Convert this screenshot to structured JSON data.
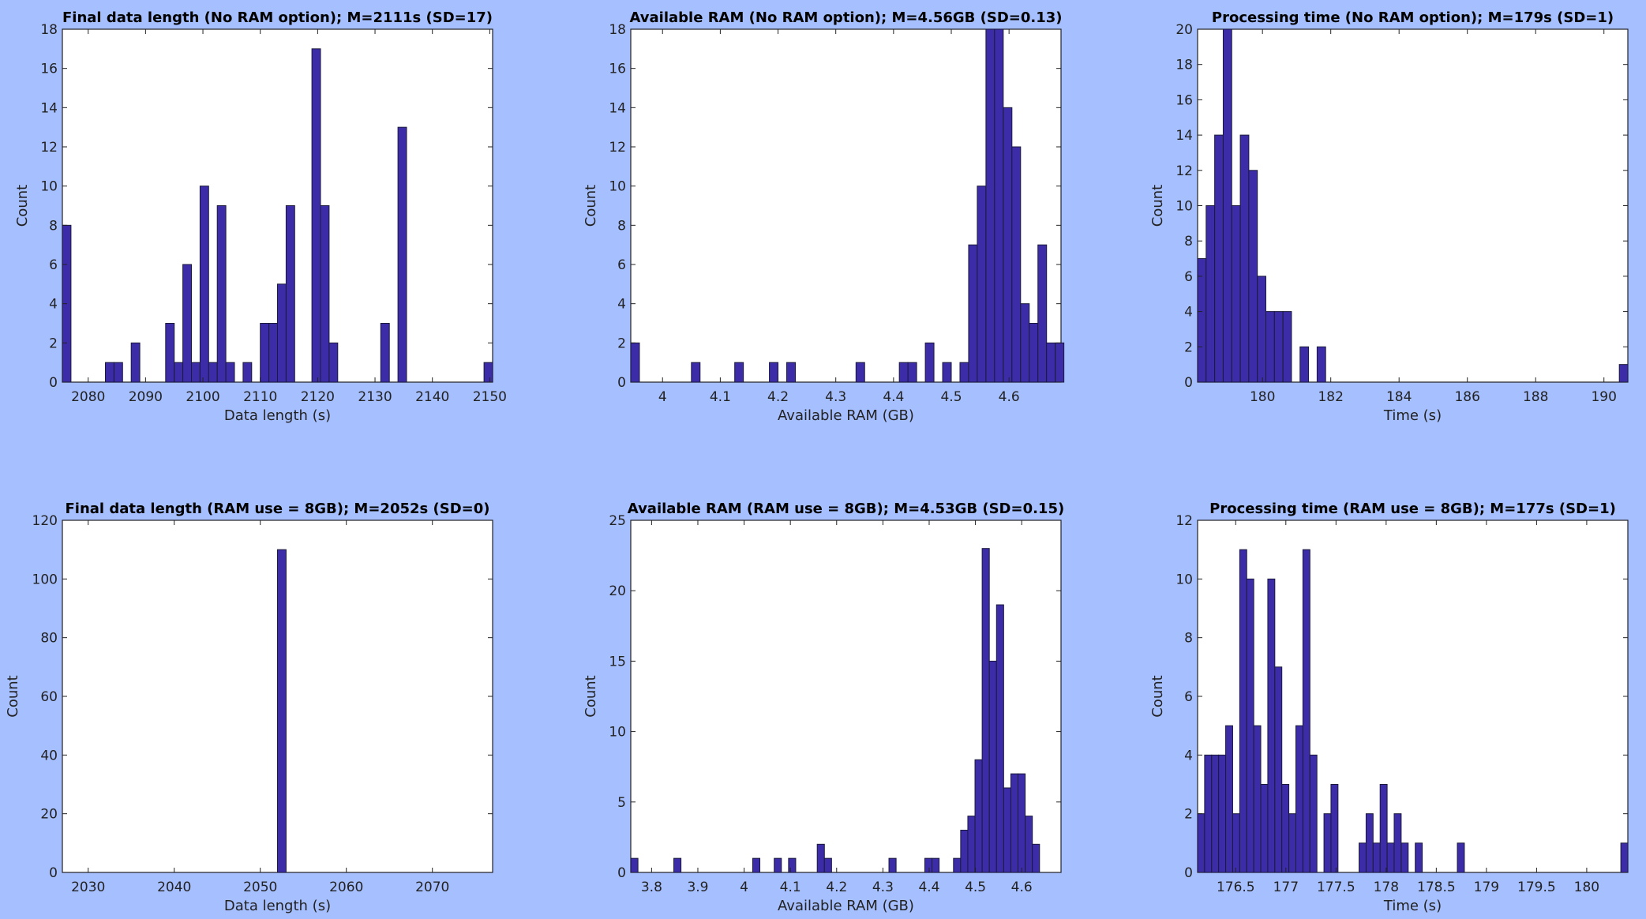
{
  "colors": {
    "background": "#a6bfff",
    "bar": "#3d2ca8",
    "plot_bg": "#ffffff"
  },
  "chart_data": [
    {
      "type": "bar",
      "title": "Final data length (No RAM option); M=2111s (SD=17)",
      "xlabel": "Data length (s)",
      "ylabel": "Count",
      "xlim": [
        2075.5,
        2150.5
      ],
      "ylim": [
        0,
        18
      ],
      "xticks": [
        2080,
        2090,
        2100,
        2110,
        2120,
        2130,
        2140,
        2150
      ],
      "yticks": [
        0,
        2,
        4,
        6,
        8,
        10,
        12,
        14,
        16,
        18
      ],
      "bin_width": 1.5,
      "bins": [
        {
          "x": 2076.25,
          "count": 8
        },
        {
          "x": 2083.75,
          "count": 1
        },
        {
          "x": 2085.25,
          "count": 1
        },
        {
          "x": 2088.25,
          "count": 2
        },
        {
          "x": 2094.25,
          "count": 3
        },
        {
          "x": 2095.75,
          "count": 1
        },
        {
          "x": 2097.25,
          "count": 6
        },
        {
          "x": 2098.75,
          "count": 1
        },
        {
          "x": 2100.25,
          "count": 10
        },
        {
          "x": 2101.75,
          "count": 1
        },
        {
          "x": 2103.25,
          "count": 9
        },
        {
          "x": 2104.75,
          "count": 1
        },
        {
          "x": 2107.75,
          "count": 1
        },
        {
          "x": 2110.75,
          "count": 3
        },
        {
          "x": 2112.25,
          "count": 3
        },
        {
          "x": 2113.75,
          "count": 5
        },
        {
          "x": 2115.25,
          "count": 9
        },
        {
          "x": 2119.75,
          "count": 17
        },
        {
          "x": 2121.25,
          "count": 9
        },
        {
          "x": 2122.75,
          "count": 2
        },
        {
          "x": 2131.75,
          "count": 3
        },
        {
          "x": 2134.75,
          "count": 13
        },
        {
          "x": 2149.75,
          "count": 1
        }
      ]
    },
    {
      "type": "bar",
      "title": "Available RAM (No RAM option); M=4.56GB (SD=0.13)",
      "xlabel": "Available RAM (GB)",
      "ylabel": "Count",
      "xlim": [
        3.945,
        4.69
      ],
      "ylim": [
        0,
        18
      ],
      "xticks": [
        4,
        4.1,
        4.2,
        4.3,
        4.4,
        4.5,
        4.6
      ],
      "yticks": [
        0,
        2,
        4,
        6,
        8,
        10,
        12,
        14,
        16,
        18
      ],
      "bin_width": 0.015,
      "bins": [
        {
          "x": 3.9525,
          "count": 2
        },
        {
          "x": 4.0575,
          "count": 1
        },
        {
          "x": 4.1325,
          "count": 1
        },
        {
          "x": 4.1925,
          "count": 1
        },
        {
          "x": 4.2225,
          "count": 1
        },
        {
          "x": 4.3425,
          "count": 1
        },
        {
          "x": 4.4175,
          "count": 1
        },
        {
          "x": 4.4325,
          "count": 1
        },
        {
          "x": 4.4625,
          "count": 2
        },
        {
          "x": 4.4925,
          "count": 1
        },
        {
          "x": 4.5225,
          "count": 1
        },
        {
          "x": 4.5375,
          "count": 7
        },
        {
          "x": 4.5525,
          "count": 10
        },
        {
          "x": 4.5675,
          "count": 18
        },
        {
          "x": 4.5825,
          "count": 18
        },
        {
          "x": 4.5975,
          "count": 14
        },
        {
          "x": 4.6125,
          "count": 12
        },
        {
          "x": 4.6275,
          "count": 4
        },
        {
          "x": 4.6425,
          "count": 3
        },
        {
          "x": 4.6575,
          "count": 7
        },
        {
          "x": 4.6725,
          "count": 2
        },
        {
          "x": 4.6875,
          "count": 2
        }
      ]
    },
    {
      "type": "bar",
      "title": "Processing time (No RAM option); M=179s (SD=1)",
      "xlabel": "Time (s)",
      "ylabel": "Count",
      "xlim": [
        178.1,
        190.7
      ],
      "ylim": [
        0,
        20
      ],
      "xticks": [
        180,
        182,
        184,
        186,
        188,
        190
      ],
      "yticks": [
        0,
        2,
        4,
        6,
        8,
        10,
        12,
        14,
        16,
        18,
        20
      ],
      "bin_width": 0.25,
      "bins": [
        {
          "x": 178.225,
          "count": 7
        },
        {
          "x": 178.475,
          "count": 10
        },
        {
          "x": 178.725,
          "count": 14
        },
        {
          "x": 178.975,
          "count": 20
        },
        {
          "x": 179.225,
          "count": 10
        },
        {
          "x": 179.475,
          "count": 14
        },
        {
          "x": 179.725,
          "count": 12
        },
        {
          "x": 179.975,
          "count": 6
        },
        {
          "x": 180.225,
          "count": 4
        },
        {
          "x": 180.475,
          "count": 4
        },
        {
          "x": 180.725,
          "count": 4
        },
        {
          "x": 181.225,
          "count": 2
        },
        {
          "x": 181.725,
          "count": 2
        },
        {
          "x": 190.575,
          "count": 1
        }
      ]
    },
    {
      "type": "bar",
      "title": "Final data length (RAM use = 8GB); M=2052s (SD=0)",
      "xlabel": "Data length (s)",
      "ylabel": "Count",
      "xlim": [
        2027,
        2077
      ],
      "ylim": [
        0,
        120
      ],
      "xticks": [
        2030,
        2040,
        2050,
        2060,
        2070
      ],
      "yticks": [
        0,
        20,
        40,
        60,
        80,
        100,
        120
      ],
      "bin_width": 1,
      "bins": [
        {
          "x": 2052.5,
          "count": 110
        }
      ]
    },
    {
      "type": "bar",
      "title": "Available RAM (RAM use = 8GB); M=4.53GB (SD=0.15)",
      "xlabel": "Available RAM (GB)",
      "ylabel": "Count",
      "xlim": [
        3.755,
        4.685
      ],
      "ylim": [
        0,
        25
      ],
      "xticks": [
        3.8,
        3.9,
        4,
        4.1,
        4.2,
        4.3,
        4.4,
        4.5,
        4.6
      ],
      "yticks": [
        0,
        5,
        10,
        15,
        20,
        25
      ],
      "bin_width": 0.0155,
      "bins": [
        {
          "x": 3.7628,
          "count": 1
        },
        {
          "x": 3.8558,
          "count": 1
        },
        {
          "x": 4.0263,
          "count": 1
        },
        {
          "x": 4.0728,
          "count": 1
        },
        {
          "x": 4.1038,
          "count": 1
        },
        {
          "x": 4.1658,
          "count": 2
        },
        {
          "x": 4.1813,
          "count": 1
        },
        {
          "x": 4.3208,
          "count": 1
        },
        {
          "x": 4.3983,
          "count": 1
        },
        {
          "x": 4.4138,
          "count": 1
        },
        {
          "x": 4.4603,
          "count": 1
        },
        {
          "x": 4.4758,
          "count": 3
        },
        {
          "x": 4.4913,
          "count": 4
        },
        {
          "x": 4.5068,
          "count": 8
        },
        {
          "x": 4.5223,
          "count": 23
        },
        {
          "x": 4.5378,
          "count": 15
        },
        {
          "x": 4.5533,
          "count": 19
        },
        {
          "x": 4.5688,
          "count": 6
        },
        {
          "x": 4.5843,
          "count": 7
        },
        {
          "x": 4.5998,
          "count": 7
        },
        {
          "x": 4.6153,
          "count": 4
        },
        {
          "x": 4.6308,
          "count": 2
        }
      ]
    },
    {
      "type": "bar",
      "title": "Processing time (RAM use = 8GB); M=177s (SD=1)",
      "xlabel": "Time (s)",
      "ylabel": "Count",
      "xlim": [
        176.12,
        180.41
      ],
      "ylim": [
        0,
        12
      ],
      "xticks": [
        176.5,
        177,
        177.5,
        178,
        178.5,
        179,
        179.5,
        180
      ],
      "yticks": [
        0,
        2,
        4,
        6,
        8,
        10,
        12
      ],
      "bin_width": 0.07,
      "bins": [
        {
          "x": 176.155,
          "count": 2
        },
        {
          "x": 176.225,
          "count": 4
        },
        {
          "x": 176.295,
          "count": 4
        },
        {
          "x": 176.365,
          "count": 4
        },
        {
          "x": 176.435,
          "count": 5
        },
        {
          "x": 176.505,
          "count": 2
        },
        {
          "x": 176.575,
          "count": 11
        },
        {
          "x": 176.645,
          "count": 10
        },
        {
          "x": 176.715,
          "count": 5
        },
        {
          "x": 176.785,
          "count": 3
        },
        {
          "x": 176.855,
          "count": 10
        },
        {
          "x": 176.925,
          "count": 7
        },
        {
          "x": 176.995,
          "count": 3
        },
        {
          "x": 177.065,
          "count": 2
        },
        {
          "x": 177.135,
          "count": 5
        },
        {
          "x": 177.205,
          "count": 11
        },
        {
          "x": 177.275,
          "count": 4
        },
        {
          "x": 177.415,
          "count": 2
        },
        {
          "x": 177.485,
          "count": 3
        },
        {
          "x": 177.765,
          "count": 1
        },
        {
          "x": 177.835,
          "count": 2
        },
        {
          "x": 177.905,
          "count": 1
        },
        {
          "x": 177.975,
          "count": 3
        },
        {
          "x": 178.045,
          "count": 1
        },
        {
          "x": 178.115,
          "count": 2
        },
        {
          "x": 178.185,
          "count": 1
        },
        {
          "x": 178.325,
          "count": 1
        },
        {
          "x": 178.745,
          "count": 1
        },
        {
          "x": 180.375,
          "count": 1
        }
      ]
    }
  ]
}
